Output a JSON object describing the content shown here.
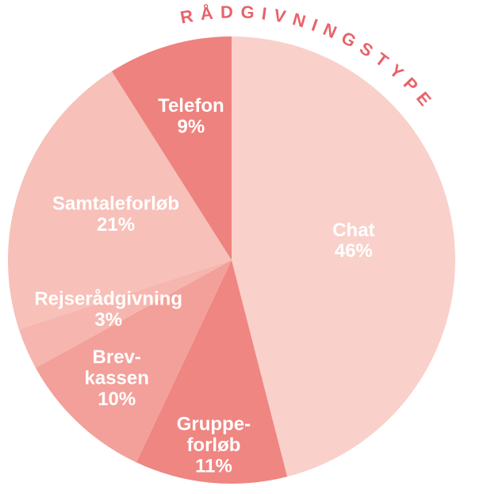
{
  "chart_data": {
    "type": "pie",
    "title": "RÅDGIVNINGSTYPE",
    "categories": [
      "Chat",
      "Gruppe-forløb",
      "Brev-kassen",
      "Rejserådgivning",
      "Samtaleforløb",
      "Telefon"
    ],
    "values": [
      46,
      11,
      10,
      3,
      21,
      9
    ],
    "value_labels": [
      "46%",
      "11%",
      "10%",
      "3%",
      "21%",
      "9%"
    ],
    "colors": [
      "#f9d1ca",
      "#ef8682",
      "#f3a09a",
      "#f6b6af",
      "#f7c0b9",
      "#ee827e"
    ]
  }
}
